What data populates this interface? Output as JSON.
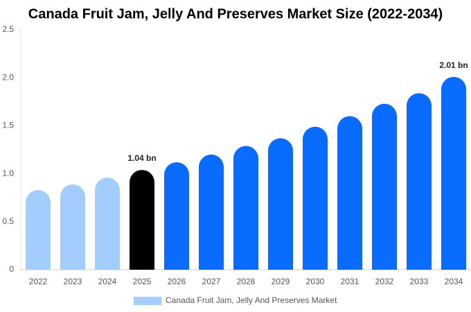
{
  "chart_data": {
    "type": "bar",
    "title": "Canada Fruit Jam, Jelly And Preserves Market Size (2022-2034)",
    "categories": [
      "2022",
      "2023",
      "2024",
      "2025",
      "2026",
      "2027",
      "2028",
      "2029",
      "2030",
      "2031",
      "2032",
      "2033",
      "2034"
    ],
    "series": [
      {
        "name": "Canada Fruit Jam, Jelly And Preserves Market",
        "color": "#a3cdfc",
        "colors": [
          "#a3cdfc",
          "#a3cdfc",
          "#a3cdfc",
          "#000000",
          "#0a6cff",
          "#0a6cff",
          "#0a6cff",
          "#0a6cff",
          "#0a6cff",
          "#0a6cff",
          "#0a6cff",
          "#0a6cff",
          "#0a6cff"
        ],
        "values": [
          0.83,
          0.89,
          0.96,
          1.04,
          1.12,
          1.2,
          1.29,
          1.37,
          1.49,
          1.6,
          1.73,
          1.84,
          2.01
        ],
        "value_labels": [
          null,
          null,
          null,
          "1.04 bn",
          null,
          null,
          null,
          null,
          null,
          null,
          null,
          null,
          "2.01 bn"
        ]
      }
    ],
    "ylim": [
      0,
      2.5
    ],
    "yticks": [
      0,
      0.5,
      {
        "value": 1,
        "label": "1.0"
      },
      1.5,
      {
        "value": 2,
        "label": "2.0"
      },
      2.5
    ],
    "grid": false
  }
}
